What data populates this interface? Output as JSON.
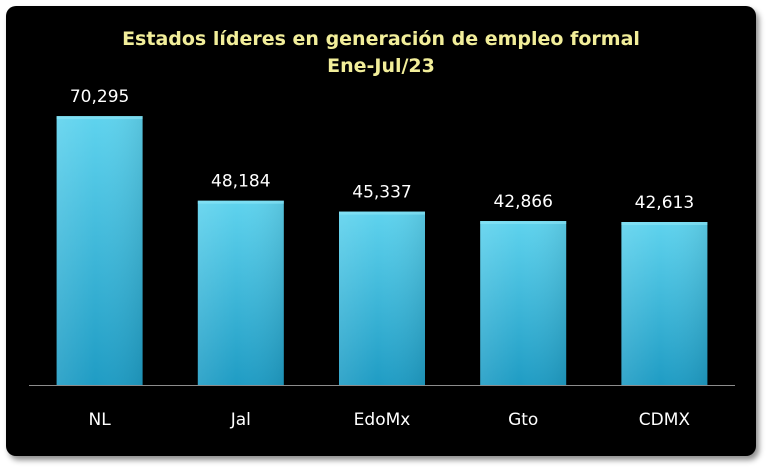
{
  "chart_data": {
    "type": "bar",
    "title": "Estados líderes en generación de empleo formal",
    "subtitle": "Ene-Jul/23",
    "categories": [
      "NL",
      "Jal",
      "EdoMx",
      "Gto",
      "CDMX"
    ],
    "values": [
      70295,
      48184,
      45337,
      42866,
      42613
    ],
    "value_labels": [
      "70,295",
      "48,184",
      "45,337",
      "42,866",
      "42,613"
    ],
    "xlabel": "",
    "ylabel": "",
    "ylim": [
      0,
      80000
    ],
    "grid": false,
    "legend": "none",
    "colors": {
      "background": "#000000",
      "title": "#f2ee9a",
      "bar_top": "#5fd3ee",
      "bar_bottom": "#1f9cc4",
      "text": "#ffffff",
      "axis": "#8c8c8c"
    }
  }
}
